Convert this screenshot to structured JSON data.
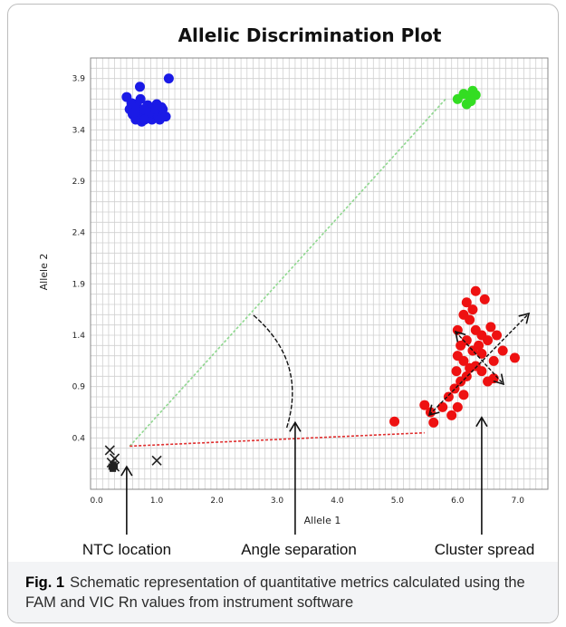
{
  "chart_data": {
    "type": "scatter",
    "title": "Allelic Discrimination Plot",
    "xlabel": "Allele 1",
    "ylabel": "Allele 2",
    "xlim": [
      -0.1,
      7.5
    ],
    "ylim": [
      -0.1,
      4.1
    ],
    "x_ticks": [
      "0.0",
      "1.0",
      "2.0",
      "3.0",
      "4.0",
      "5.0",
      "6.0",
      "7.0"
    ],
    "x_tick_values": [
      0,
      1,
      2,
      3,
      4,
      5,
      6,
      7
    ],
    "y_ticks": [
      "0.4",
      "0.9",
      "1.4",
      "1.9",
      "2.4",
      "2.9",
      "3.4",
      "3.9"
    ],
    "y_tick_values": [
      0.4,
      0.9,
      1.4,
      1.9,
      2.4,
      2.9,
      3.4,
      3.9
    ],
    "grid": true,
    "colors": {
      "blue": "#1a1ae6",
      "green": "#33dd22",
      "red": "#ee1111",
      "ntc": "#222222",
      "green_line": "#8fd88f",
      "red_line": "#e03030"
    },
    "series": [
      {
        "color": "blue",
        "marker": "circle",
        "points": [
          [
            0.5,
            3.72
          ],
          [
            0.62,
            3.65
          ],
          [
            0.72,
            3.82
          ],
          [
            0.8,
            3.55
          ],
          [
            0.9,
            3.6
          ],
          [
            1.0,
            3.65
          ],
          [
            1.1,
            3.6
          ],
          [
            1.2,
            3.9
          ],
          [
            0.55,
            3.6
          ],
          [
            0.6,
            3.55
          ],
          [
            0.65,
            3.5
          ],
          [
            0.7,
            3.58
          ],
          [
            0.75,
            3.48
          ],
          [
            0.82,
            3.52
          ],
          [
            0.85,
            3.64
          ],
          [
            0.92,
            3.5
          ],
          [
            0.95,
            3.56
          ],
          [
            1.02,
            3.54
          ],
          [
            1.05,
            3.5
          ],
          [
            1.15,
            3.53
          ],
          [
            0.58,
            3.66
          ],
          [
            0.68,
            3.62
          ],
          [
            0.78,
            3.6
          ],
          [
            0.88,
            3.57
          ],
          [
            0.98,
            3.6
          ],
          [
            0.7,
            3.52
          ],
          [
            0.8,
            3.5
          ],
          [
            1.08,
            3.62
          ],
          [
            0.63,
            3.57
          ],
          [
            0.73,
            3.7
          ]
        ]
      },
      {
        "color": "green",
        "marker": "circle",
        "points": [
          [
            6.0,
            3.7
          ],
          [
            6.1,
            3.75
          ],
          [
            6.15,
            3.65
          ],
          [
            6.2,
            3.72
          ],
          [
            6.25,
            3.78
          ],
          [
            6.3,
            3.74
          ],
          [
            6.22,
            3.68
          ]
        ]
      },
      {
        "color": "red",
        "marker": "circle",
        "points": [
          [
            4.95,
            0.56
          ],
          [
            5.45,
            0.72
          ],
          [
            5.55,
            0.65
          ],
          [
            5.6,
            0.55
          ],
          [
            5.75,
            0.7
          ],
          [
            5.9,
            0.62
          ],
          [
            6.0,
            0.7
          ],
          [
            6.1,
            0.82
          ],
          [
            5.85,
            0.8
          ],
          [
            5.95,
            0.88
          ],
          [
            6.05,
            0.95
          ],
          [
            6.15,
            1.0
          ],
          [
            6.2,
            1.08
          ],
          [
            6.1,
            1.15
          ],
          [
            6.0,
            1.2
          ],
          [
            6.3,
            1.1
          ],
          [
            6.4,
            1.05
          ],
          [
            6.5,
            0.95
          ],
          [
            6.6,
            0.98
          ],
          [
            6.25,
            1.25
          ],
          [
            6.35,
            1.3
          ],
          [
            6.15,
            1.35
          ],
          [
            6.3,
            1.45
          ],
          [
            6.2,
            1.55
          ],
          [
            6.1,
            1.6
          ],
          [
            6.4,
            1.4
          ],
          [
            6.5,
            1.35
          ],
          [
            6.55,
            1.48
          ],
          [
            6.75,
            1.25
          ],
          [
            6.95,
            1.18
          ],
          [
            6.45,
            1.75
          ],
          [
            6.3,
            1.83
          ],
          [
            6.0,
            1.45
          ],
          [
            6.05,
            1.3
          ],
          [
            6.6,
            1.15
          ],
          [
            6.65,
            1.4
          ],
          [
            6.15,
            1.72
          ],
          [
            6.25,
            1.65
          ],
          [
            6.4,
            1.22
          ],
          [
            5.98,
            1.05
          ]
        ]
      },
      {
        "color": "ntc",
        "marker": "x",
        "points": [
          [
            0.22,
            0.28
          ],
          [
            0.3,
            0.2
          ],
          [
            0.25,
            0.16
          ],
          [
            0.3,
            0.12
          ],
          [
            1.0,
            0.18
          ]
        ]
      },
      {
        "color": "ntc",
        "marker": "square",
        "points": [
          [
            0.25,
            0.12
          ],
          [
            0.28,
            0.14
          ],
          [
            0.3,
            0.12
          ],
          [
            0.27,
            0.1
          ]
        ]
      }
    ],
    "annotations": [
      {
        "text": "NTC location",
        "arrow_to": [
          0.5,
          0.12
        ]
      },
      {
        "text": "Angle separation",
        "arrow_to": [
          3.3,
          0.55
        ]
      },
      {
        "text": "Cluster spread",
        "arrow_to": [
          6.4,
          0.6
        ]
      }
    ],
    "reference_lines": [
      {
        "color": "green_line",
        "style": "dashed",
        "from": [
          0.55,
          0.32
        ],
        "to": [
          5.8,
          3.7
        ]
      },
      {
        "color": "red_line",
        "style": "dashed",
        "from": [
          0.55,
          0.32
        ],
        "to": [
          5.45,
          0.45
        ]
      }
    ]
  },
  "caption": {
    "label": "Fig. 1",
    "text": "Schematic representation of quantitative metrics calculated using the FAM and VIC Rn values from instrument software"
  }
}
